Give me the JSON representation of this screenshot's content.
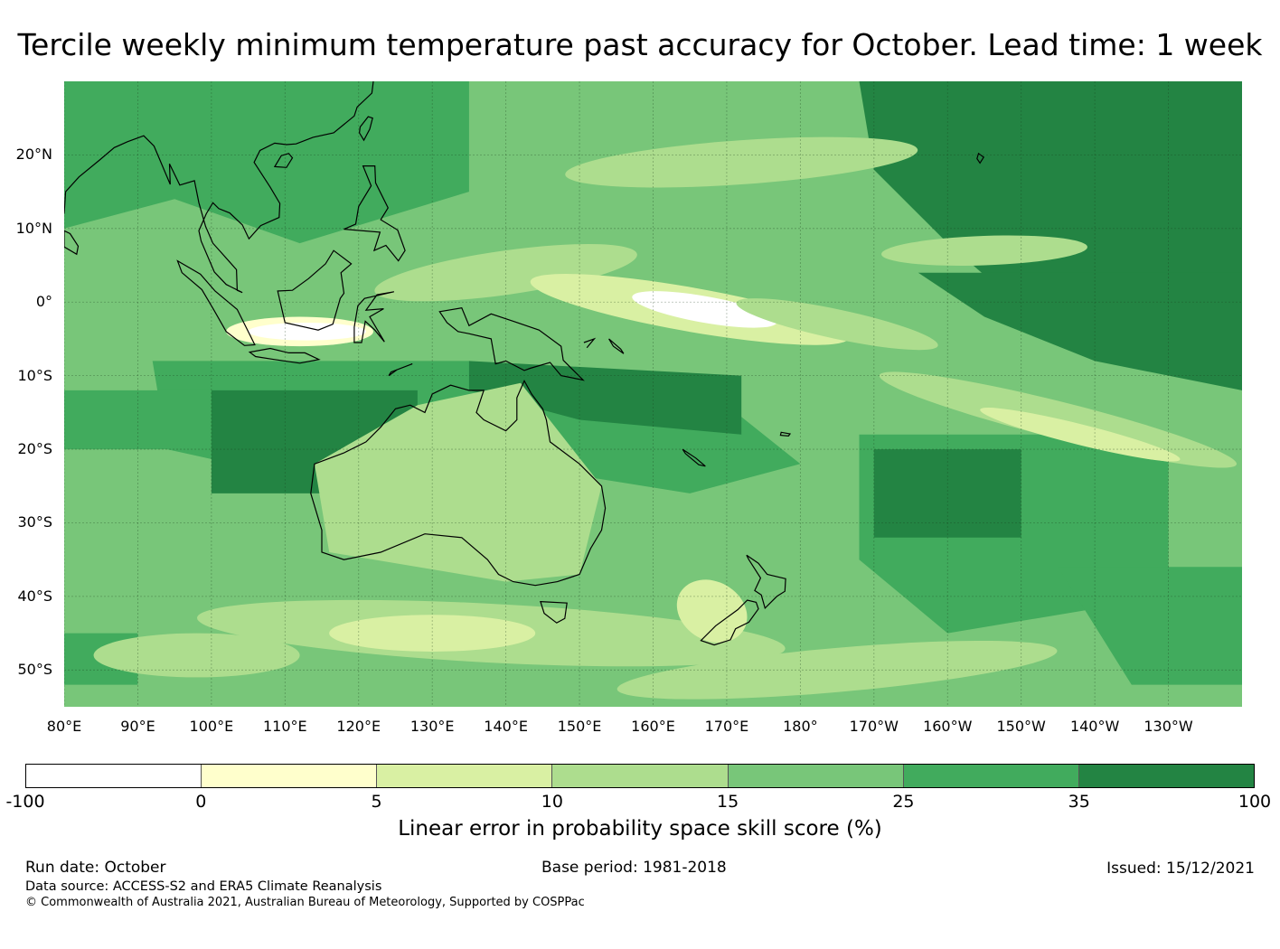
{
  "title": "Tercile weekly minimum temperature past accuracy for October. Lead time: 1 week",
  "map": {
    "lat_labels": [
      "20°N",
      "10°N",
      "0°",
      "10°S",
      "20°S",
      "30°S",
      "40°S",
      "50°S"
    ],
    "lat_values": [
      20,
      10,
      0,
      -10,
      -20,
      -30,
      -40,
      -50
    ],
    "lat_range": [
      30,
      -55
    ],
    "lon_labels": [
      "80°E",
      "90°E",
      "100°E",
      "110°E",
      "120°E",
      "130°E",
      "140°E",
      "150°E",
      "160°E",
      "170°E",
      "180°",
      "170°W",
      "160°W",
      "150°W",
      "140°W",
      "130°W"
    ],
    "lon_values": [
      80,
      90,
      100,
      110,
      120,
      130,
      140,
      150,
      160,
      170,
      180,
      190,
      200,
      210,
      220,
      230
    ],
    "lon_range": [
      80,
      240
    ]
  },
  "colorbar": {
    "ticks": [
      "-100",
      "0",
      "5",
      "10",
      "15",
      "25",
      "35",
      "100"
    ],
    "colors": [
      "#ffffff",
      "#ffffcc",
      "#d9f0a3",
      "#addd8e",
      "#78c679",
      "#41ab5d",
      "#238443"
    ],
    "label": "Linear error in probability space skill score (%)"
  },
  "footer": {
    "run_date": "Run date: October",
    "base_period": "Base period: 1981-2018",
    "issued": "Issued: 15/12/2021",
    "data_source": "Data source: ACCESS-S2 and ERA5 Climate Reanalysis",
    "copyright": "© Commonwealth of Australia 2021, Australian Bureau of Meteorology, Supported by COSPPac"
  }
}
